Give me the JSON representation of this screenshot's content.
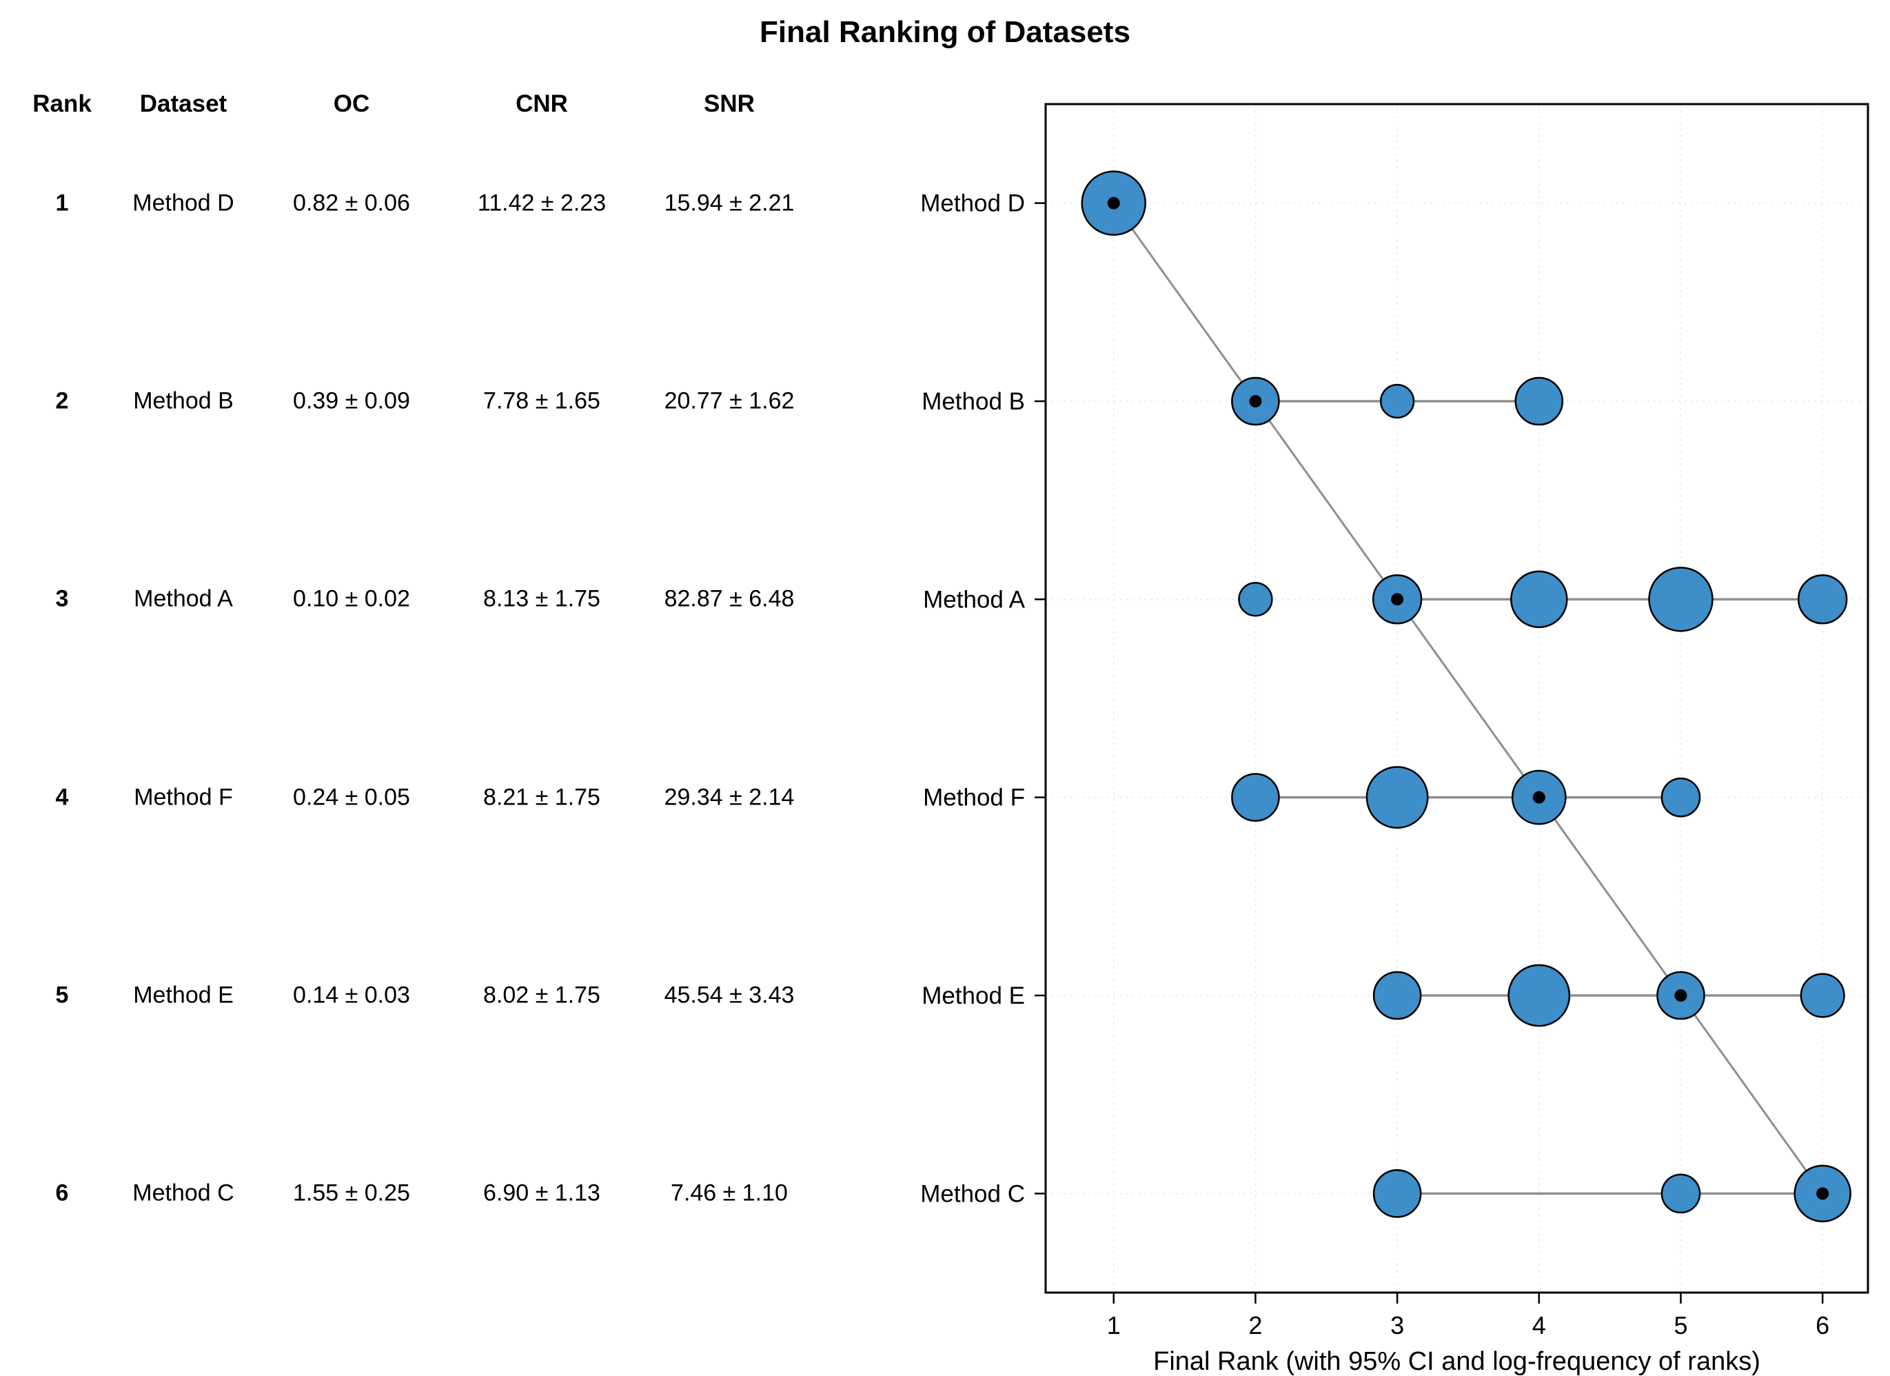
{
  "title": "Final Ranking of Datasets",
  "table": {
    "headers": [
      "Rank",
      "Dataset",
      "OC",
      "CNR",
      "SNR"
    ],
    "rows": [
      {
        "rank": "1",
        "dataset": "Method D",
        "oc": "0.82 ± 0.06",
        "cnr": "11.42 ± 2.23",
        "snr": "15.94 ± 2.21"
      },
      {
        "rank": "2",
        "dataset": "Method B",
        "oc": "0.39 ± 0.09",
        "cnr": "7.78 ± 1.65",
        "snr": "20.77 ± 1.62"
      },
      {
        "rank": "3",
        "dataset": "Method A",
        "oc": "0.10 ± 0.02",
        "cnr": "8.13 ± 1.75",
        "snr": "82.87 ± 6.48"
      },
      {
        "rank": "4",
        "dataset": "Method F",
        "oc": "0.24 ± 0.05",
        "cnr": "8.21 ± 1.75",
        "snr": "29.34 ± 2.14"
      },
      {
        "rank": "5",
        "dataset": "Method E",
        "oc": "0.14 ± 0.03",
        "cnr": "8.02 ± 1.75",
        "snr": "45.54 ± 3.43"
      },
      {
        "rank": "6",
        "dataset": "Method C",
        "oc": "1.55 ± 0.25",
        "cnr": "6.90 ± 1.13",
        "snr": "7.46 ± 1.10"
      }
    ]
  },
  "chart_data": {
    "type": "scatter",
    "title": "Final Ranking of Datasets",
    "xlabel": "Final Rank (with 95% CI and log-frequency of ranks)",
    "x_ticks": [
      "1",
      "2",
      "3",
      "4",
      "5",
      "6"
    ],
    "xlim": [
      0.52,
      6.32
    ],
    "grid": "dotted",
    "legend_position": "none",
    "bubble_color": "#3d8ec9",
    "line_color": "#8f8f8f",
    "y_categories": [
      "Method D",
      "Method B",
      "Method A",
      "Method F",
      "Method E",
      "Method C"
    ],
    "series": [
      {
        "method": "Method D",
        "final_rank": 1,
        "ci": [
          1,
          1
        ],
        "ranks": [
          {
            "x": 1,
            "size": 1.0
          }
        ]
      },
      {
        "method": "Method B",
        "final_rank": 2,
        "ci": [
          2,
          4
        ],
        "ranks": [
          {
            "x": 2,
            "size": 0.74
          },
          {
            "x": 3,
            "size": 0.52
          },
          {
            "x": 4,
            "size": 0.74
          }
        ]
      },
      {
        "method": "Method A",
        "final_rank": 3,
        "ci": [
          3,
          6
        ],
        "ranks": [
          {
            "x": 2,
            "size": 0.52
          },
          {
            "x": 3,
            "size": 0.76
          },
          {
            "x": 4,
            "size": 0.88
          },
          {
            "x": 5,
            "size": 1.0
          },
          {
            "x": 6,
            "size": 0.76
          }
        ]
      },
      {
        "method": "Method F",
        "final_rank": 4,
        "ci": [
          2,
          5
        ],
        "ranks": [
          {
            "x": 2,
            "size": 0.74
          },
          {
            "x": 3,
            "size": 0.96
          },
          {
            "x": 4,
            "size": 0.84
          },
          {
            "x": 5,
            "size": 0.6
          }
        ]
      },
      {
        "method": "Method E",
        "final_rank": 5,
        "ci": [
          3,
          6
        ],
        "ranks": [
          {
            "x": 3,
            "size": 0.74
          },
          {
            "x": 4,
            "size": 0.96
          },
          {
            "x": 5,
            "size": 0.74
          },
          {
            "x": 6,
            "size": 0.68
          }
        ]
      },
      {
        "method": "Method C",
        "final_rank": 6,
        "ci": [
          3,
          6
        ],
        "ranks": [
          {
            "x": 3,
            "size": 0.74
          },
          {
            "x": 5,
            "size": 0.6
          },
          {
            "x": 6,
            "size": 0.88
          }
        ]
      }
    ]
  }
}
